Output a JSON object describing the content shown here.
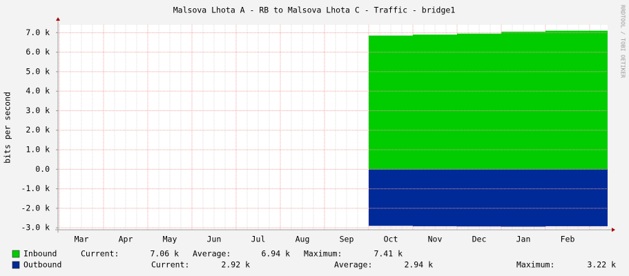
{
  "chart_data": {
    "type": "area",
    "title": "Malsova Lhota A - RB to Malsova Lhota C - Traffic - bridge1",
    "y_label": "bits per second",
    "watermark": "RRDTOOL / TOBI OETIKER",
    "categories": [
      "Mar",
      "Apr",
      "May",
      "Jun",
      "Jul",
      "Aug",
      "Sep",
      "Oct",
      "Nov",
      "Dec",
      "Jan",
      "Feb",
      null
    ],
    "series": [
      {
        "name": "Inbound",
        "color": "#00cc00",
        "values": [
          null,
          null,
          null,
          null,
          null,
          null,
          null,
          6850,
          6900,
          6950,
          7050,
          7100,
          7100
        ],
        "stats": [
          {
            "label": "Current:",
            "value": "7.06 k"
          },
          {
            "label": "Average:",
            "value": "6.94 k"
          },
          {
            "label": "Maximum:",
            "value": "7.41 k"
          }
        ]
      },
      {
        "name": "Outbound",
        "color": "#002a97",
        "values": [
          null,
          null,
          null,
          null,
          null,
          null,
          null,
          -2900,
          -2920,
          -2930,
          -2940,
          -2920,
          -2920
        ],
        "stats": [
          {
            "label": "Current:",
            "value": "2.92 k"
          },
          {
            "label": "Average:",
            "value": "2.94 k"
          },
          {
            "label": "Maximum:",
            "value": "3.22 k"
          }
        ]
      }
    ],
    "ylim": [
      -3100,
      7400
    ],
    "yticks": [
      {
        "value": -3000,
        "label": "-3.0 k"
      },
      {
        "value": -2000,
        "label": "-2.0 k"
      },
      {
        "value": -1000,
        "label": "-1.0 k"
      },
      {
        "value": 0,
        "label": "0.0"
      },
      {
        "value": 1000,
        "label": "1.0 k"
      },
      {
        "value": 2000,
        "label": "2.0 k"
      },
      {
        "value": 3000,
        "label": "3.0 k"
      },
      {
        "value": 4000,
        "label": "4.0 k"
      },
      {
        "value": 5000,
        "label": "5.0 k"
      },
      {
        "value": 6000,
        "label": "6.0 k"
      },
      {
        "value": 7000,
        "label": "7.0 k"
      }
    ],
    "grid": true
  }
}
